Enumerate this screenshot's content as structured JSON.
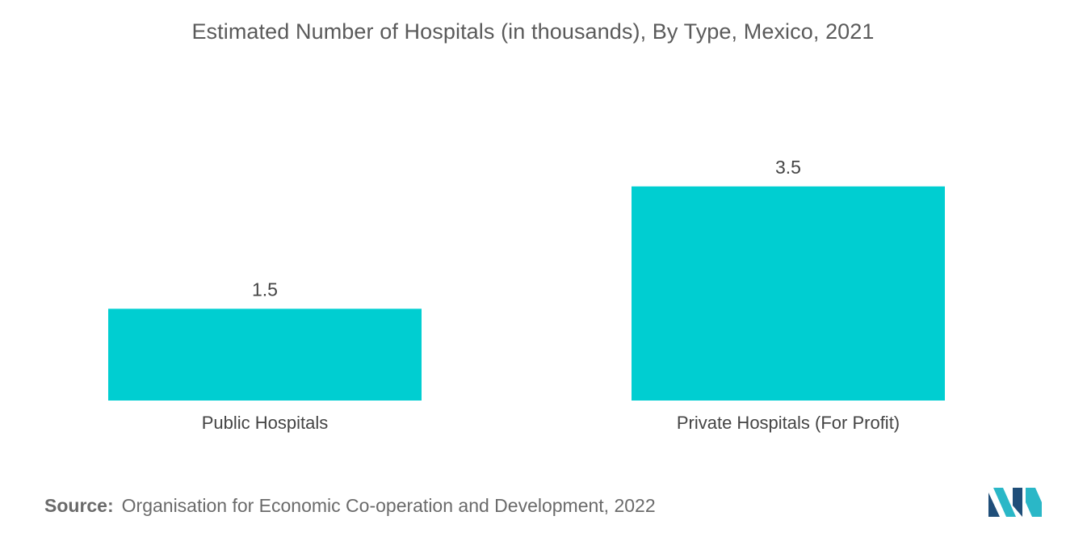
{
  "title": "Estimated Number of Hospitals (in thousands), By Type, Mexico, 2021",
  "source": {
    "label": "Source:",
    "text": "Organisation for Economic Co-operation and Development, 2022"
  },
  "colors": {
    "bar": "#00CED1",
    "logo_dark": "#1F4E79",
    "logo_light": "#2AB7C7"
  },
  "logo_icon": "mordor-intelligence-logo",
  "chart_data": {
    "type": "bar",
    "title": "Estimated Number of Hospitals (in thousands), By Type, Mexico, 2021",
    "categories": [
      "Public Hospitals",
      "Private Hospitals (For Profit)"
    ],
    "values": [
      1.5,
      3.5
    ],
    "value_labels": [
      "1.5",
      "3.5"
    ],
    "ylim": [
      0,
      4.25
    ],
    "grid": false,
    "legend": "none"
  }
}
